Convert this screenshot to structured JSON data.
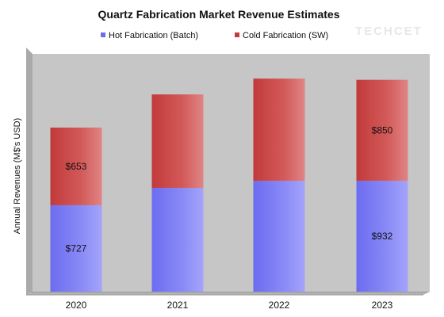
{
  "watermark": "TECHCET",
  "chart_data": {
    "type": "bar",
    "stacked": true,
    "title": "Quartz Fabrication Market Revenue Estimates",
    "xlabel": "",
    "ylabel": "Annual Revenues (M$'s USD)",
    "categories": [
      "2020",
      "2021",
      "2022",
      "2023"
    ],
    "ylim": [
      0,
      2000
    ],
    "grid": false,
    "legend_position": "top",
    "series": [
      {
        "name": "Hot Fabrication (Batch)",
        "color": "#8585f5",
        "values": [
          727,
          873,
          932,
          932
        ],
        "data_labels": [
          "$727",
          "",
          "",
          "$932"
        ]
      },
      {
        "name": "Cold Fabrication (SW)",
        "color": "#c94a4a",
        "values": [
          653,
          786,
          860,
          850
        ],
        "data_labels": [
          "$653",
          "",
          "",
          "$850"
        ]
      }
    ],
    "colors": {
      "plot_background": "#c6c6c6",
      "series_hot": "#8585f5",
      "series_cold": "#c94a4a"
    }
  }
}
